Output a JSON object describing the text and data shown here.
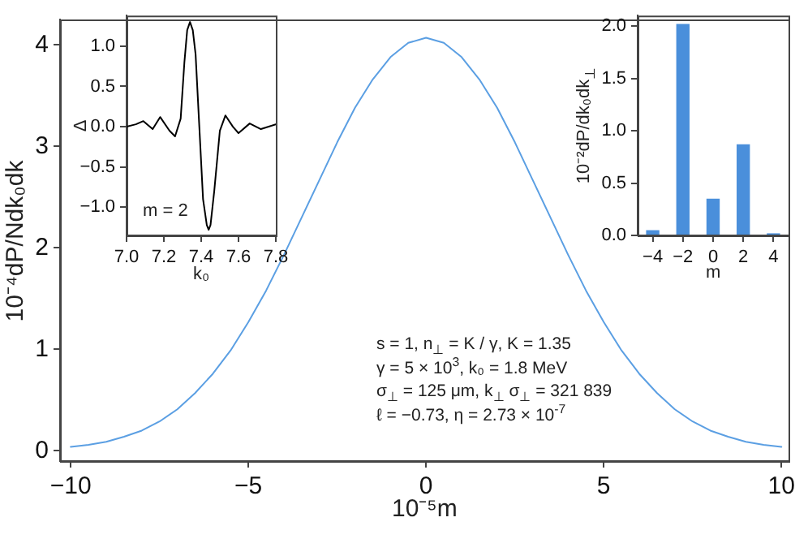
{
  "chart_data": [
    {
      "type": "line",
      "xlabel": "10⁻⁵m",
      "ylabel": "10⁻⁴dP/Ndk₀dk",
      "x": [
        -10,
        -9.5,
        -9,
        -8.5,
        -8,
        -7.5,
        -7,
        -6.5,
        -6,
        -5.5,
        -5,
        -4.5,
        -4,
        -3.5,
        -3,
        -2.5,
        -2,
        -1.5,
        -1,
        -0.5,
        0,
        0.5,
        1,
        1.5,
        2,
        2.5,
        3,
        3.5,
        4,
        4.5,
        5,
        5.5,
        6,
        6.5,
        7,
        7.5,
        8,
        8.5,
        9,
        9.5,
        10
      ],
      "series": [
        {
          "color": "#5b9fe3",
          "values": [
            0.04,
            0.06,
            0.09,
            0.14,
            0.2,
            0.29,
            0.41,
            0.57,
            0.76,
            0.99,
            1.27,
            1.58,
            1.93,
            2.3,
            2.67,
            3.04,
            3.38,
            3.66,
            3.88,
            4.02,
            4.07,
            4.02,
            3.88,
            3.66,
            3.38,
            3.04,
            2.67,
            2.3,
            1.93,
            1.58,
            1.27,
            0.99,
            0.76,
            0.57,
            0.41,
            0.29,
            0.2,
            0.14,
            0.09,
            0.06,
            0.04
          ]
        }
      ],
      "xlim": [
        -10.3,
        10.2
      ],
      "ylim": [
        -0.1,
        4.25
      ],
      "xticks": [
        -10,
        -5,
        0,
        5,
        10
      ],
      "yticks": [
        0,
        1,
        2,
        3,
        4
      ],
      "annotations": [
        "s = 1, n$_{⊥}$ = K / γ,  K = 1.35",
        "γ = 5 × 10$^{3}$,  k₀ = 1.8 MeV",
        "σ$_{⊥}$ = 125 μm,  k$_{⊥}$ σ$_{⊥}$ = 321 839",
        "ℓ = −0.73, η = 2.73 × 10$^{-7}$"
      ]
    },
    {
      "type": "line",
      "xlabel": "k₀",
      "ylabel": "Δ",
      "x": [
        7.0,
        7.05,
        7.09,
        7.14,
        7.18,
        7.23,
        7.26,
        7.29,
        7.31,
        7.325,
        7.34,
        7.355,
        7.37,
        7.39,
        7.41,
        7.43,
        7.44,
        7.45,
        7.47,
        7.5,
        7.53,
        7.57,
        7.6,
        7.66,
        7.72,
        7.8
      ],
      "series": [
        {
          "color": "#000000",
          "values": [
            0.0,
            0.03,
            0.07,
            -0.03,
            0.12,
            -0.05,
            -0.12,
            0.1,
            0.8,
            1.2,
            1.3,
            1.2,
            0.9,
            0.0,
            -0.9,
            -1.22,
            -1.28,
            -1.22,
            -0.8,
            -0.05,
            0.14,
            0.0,
            -0.08,
            0.04,
            -0.03,
            0.03
          ]
        }
      ],
      "xlim": [
        7.0,
        7.8
      ],
      "ylim": [
        -1.35,
        1.38
      ],
      "xticks": [
        {
          "value": 7,
          "label": "7.0"
        },
        7.2,
        7.4,
        7.6,
        7.8
      ],
      "yticks": [
        {
          "value": -1,
          "label": "−1.0"
        },
        -0.5,
        {
          "value": 0,
          "label": "0.0"
        },
        0.5,
        {
          "value": 1,
          "label": "1.0"
        }
      ],
      "annotations": [
        "m = 2"
      ]
    },
    {
      "type": "bar",
      "xlabel": "m",
      "ylabel": "10⁻²dP/dk₀dk$_{⊥}$",
      "categories": [
        "−4",
        "−2",
        "0",
        "2",
        "4"
      ],
      "series": [
        {
          "color": "#4a8fdb",
          "values": [
            0.05,
            2.02,
            0.35,
            0.87,
            0.02
          ]
        }
      ],
      "ylim": [
        0,
        2.1
      ],
      "yticks": [
        {
          "value": 0,
          "label": "0.0"
        },
        0.5,
        {
          "value": 1,
          "label": "1.0"
        },
        1.5,
        {
          "value": 2,
          "label": "2.0"
        }
      ]
    }
  ]
}
